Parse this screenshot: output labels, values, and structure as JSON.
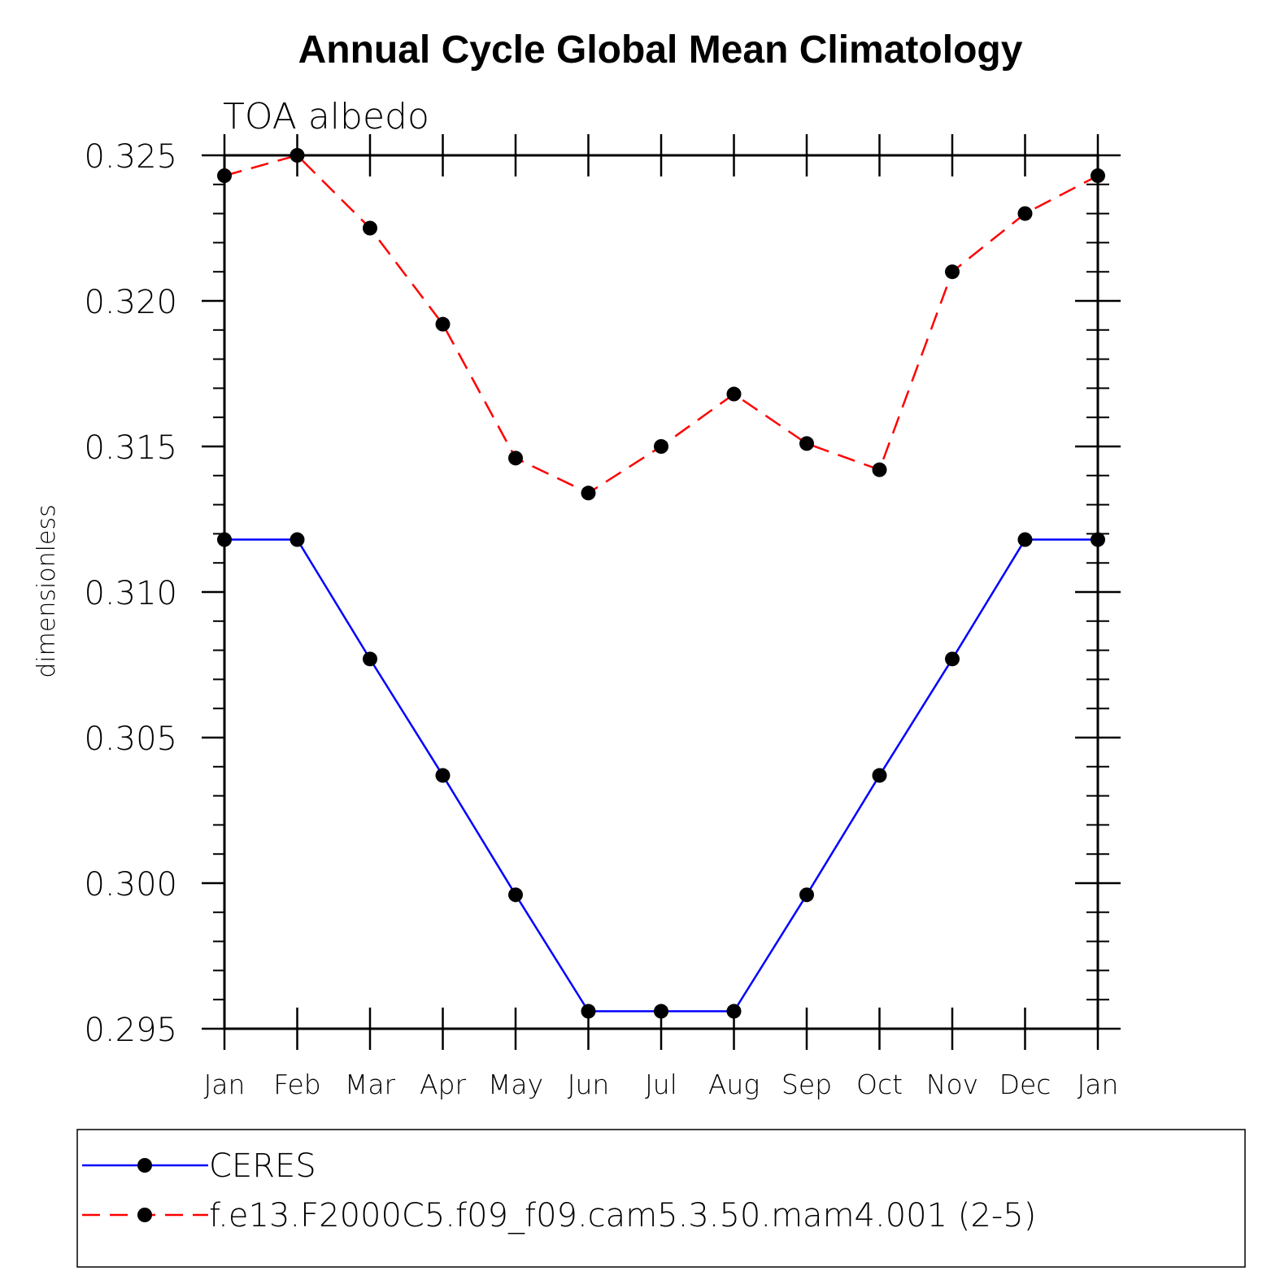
{
  "chart_data": {
    "type": "line",
    "title": "Annual Cycle Global Mean Climatology",
    "subtitle": "TOA albedo",
    "xlabel": "",
    "ylabel": "dimensionless",
    "categories": [
      "Jan",
      "Feb",
      "Mar",
      "Apr",
      "May",
      "Jun",
      "Jul",
      "Aug",
      "Sep",
      "Oct",
      "Nov",
      "Dec",
      "Jan"
    ],
    "ylim": [
      0.295,
      0.325
    ],
    "yticks": [
      0.295,
      0.3,
      0.305,
      0.31,
      0.315,
      0.32,
      0.325
    ],
    "ytick_labels": [
      "0.295",
      "0.300",
      "0.305",
      "0.310",
      "0.315",
      "0.320",
      "0.325"
    ],
    "grid": false,
    "legend_position": "bottom",
    "series": [
      {
        "name": "CERES",
        "color": "#0000ff",
        "line_style": "solid",
        "marker": "filled-circle",
        "values": [
          0.3118,
          0.3118,
          0.3077,
          0.3037,
          0.2996,
          0.2956,
          0.2956,
          0.2956,
          0.2996,
          0.3037,
          0.3077,
          0.3118,
          0.3118
        ]
      },
      {
        "name": "f.e13.F2000C5.f09_f09.cam5.3.50.mam4.001 (2-5)",
        "color": "#ff0000",
        "line_style": "dashed",
        "marker": "filled-circle",
        "values": [
          0.3243,
          0.325,
          0.3225,
          0.3192,
          0.3146,
          0.3134,
          0.315,
          0.3168,
          0.3151,
          0.3142,
          0.321,
          0.323,
          0.3243
        ]
      }
    ],
    "marker_color": "#000000"
  }
}
